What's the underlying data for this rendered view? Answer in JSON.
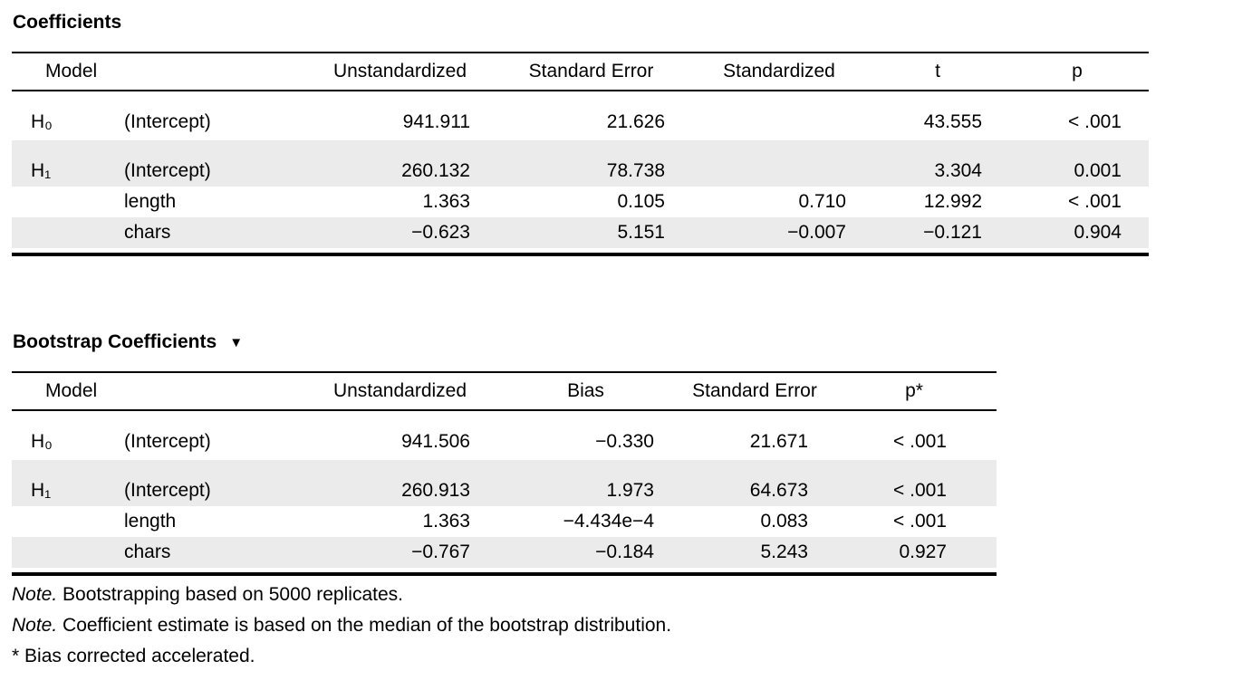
{
  "page": {
    "background_color": "#ffffff",
    "stripe_color": "#ebebeb",
    "rule_color": "#000000"
  },
  "coefficients_table": {
    "title": "Coefficients",
    "columns": [
      "Model",
      "",
      "Unstandardized",
      "Standard Error",
      "Standardized",
      "t",
      "p"
    ],
    "rows": [
      [
        "H₀",
        "(Intercept)",
        "941.911",
        "21.626",
        "",
        "43.555",
        "< .001"
      ],
      [
        "H₁",
        "(Intercept)",
        "260.132",
        "78.738",
        "",
        "3.304",
        "0.001"
      ],
      [
        "",
        "length",
        "1.363",
        "0.105",
        "0.710",
        "12.992",
        "< .001"
      ],
      [
        "",
        "chars",
        "−0.623",
        "5.151",
        "−0.007",
        "−0.121",
        "0.904"
      ]
    ]
  },
  "bootstrap_table": {
    "title": "Bootstrap Coefficients",
    "collapse_icon": "▼",
    "columns": [
      "Model",
      "",
      "Unstandardized",
      "Bias",
      "Standard Error",
      "p*"
    ],
    "rows": [
      [
        "H₀",
        "(Intercept)",
        "941.506",
        "−0.330",
        "21.671",
        "< .001"
      ],
      [
        "H₁",
        "(Intercept)",
        "260.913",
        "1.973",
        "64.673",
        "< .001"
      ],
      [
        "",
        "length",
        "1.363",
        "−4.434e−4",
        "0.083",
        "< .001"
      ],
      [
        "",
        "chars",
        "−0.767",
        "−0.184",
        "5.243",
        "0.927"
      ]
    ],
    "footnotes": [
      {
        "marker": "Note.",
        "text": "Bootstrapping based on 5000 replicates."
      },
      {
        "marker": "Note.",
        "text": "Coefficient estimate is based on the median of the bootstrap distribution."
      },
      {
        "marker": "*",
        "text": "Bias corrected accelerated."
      }
    ]
  }
}
